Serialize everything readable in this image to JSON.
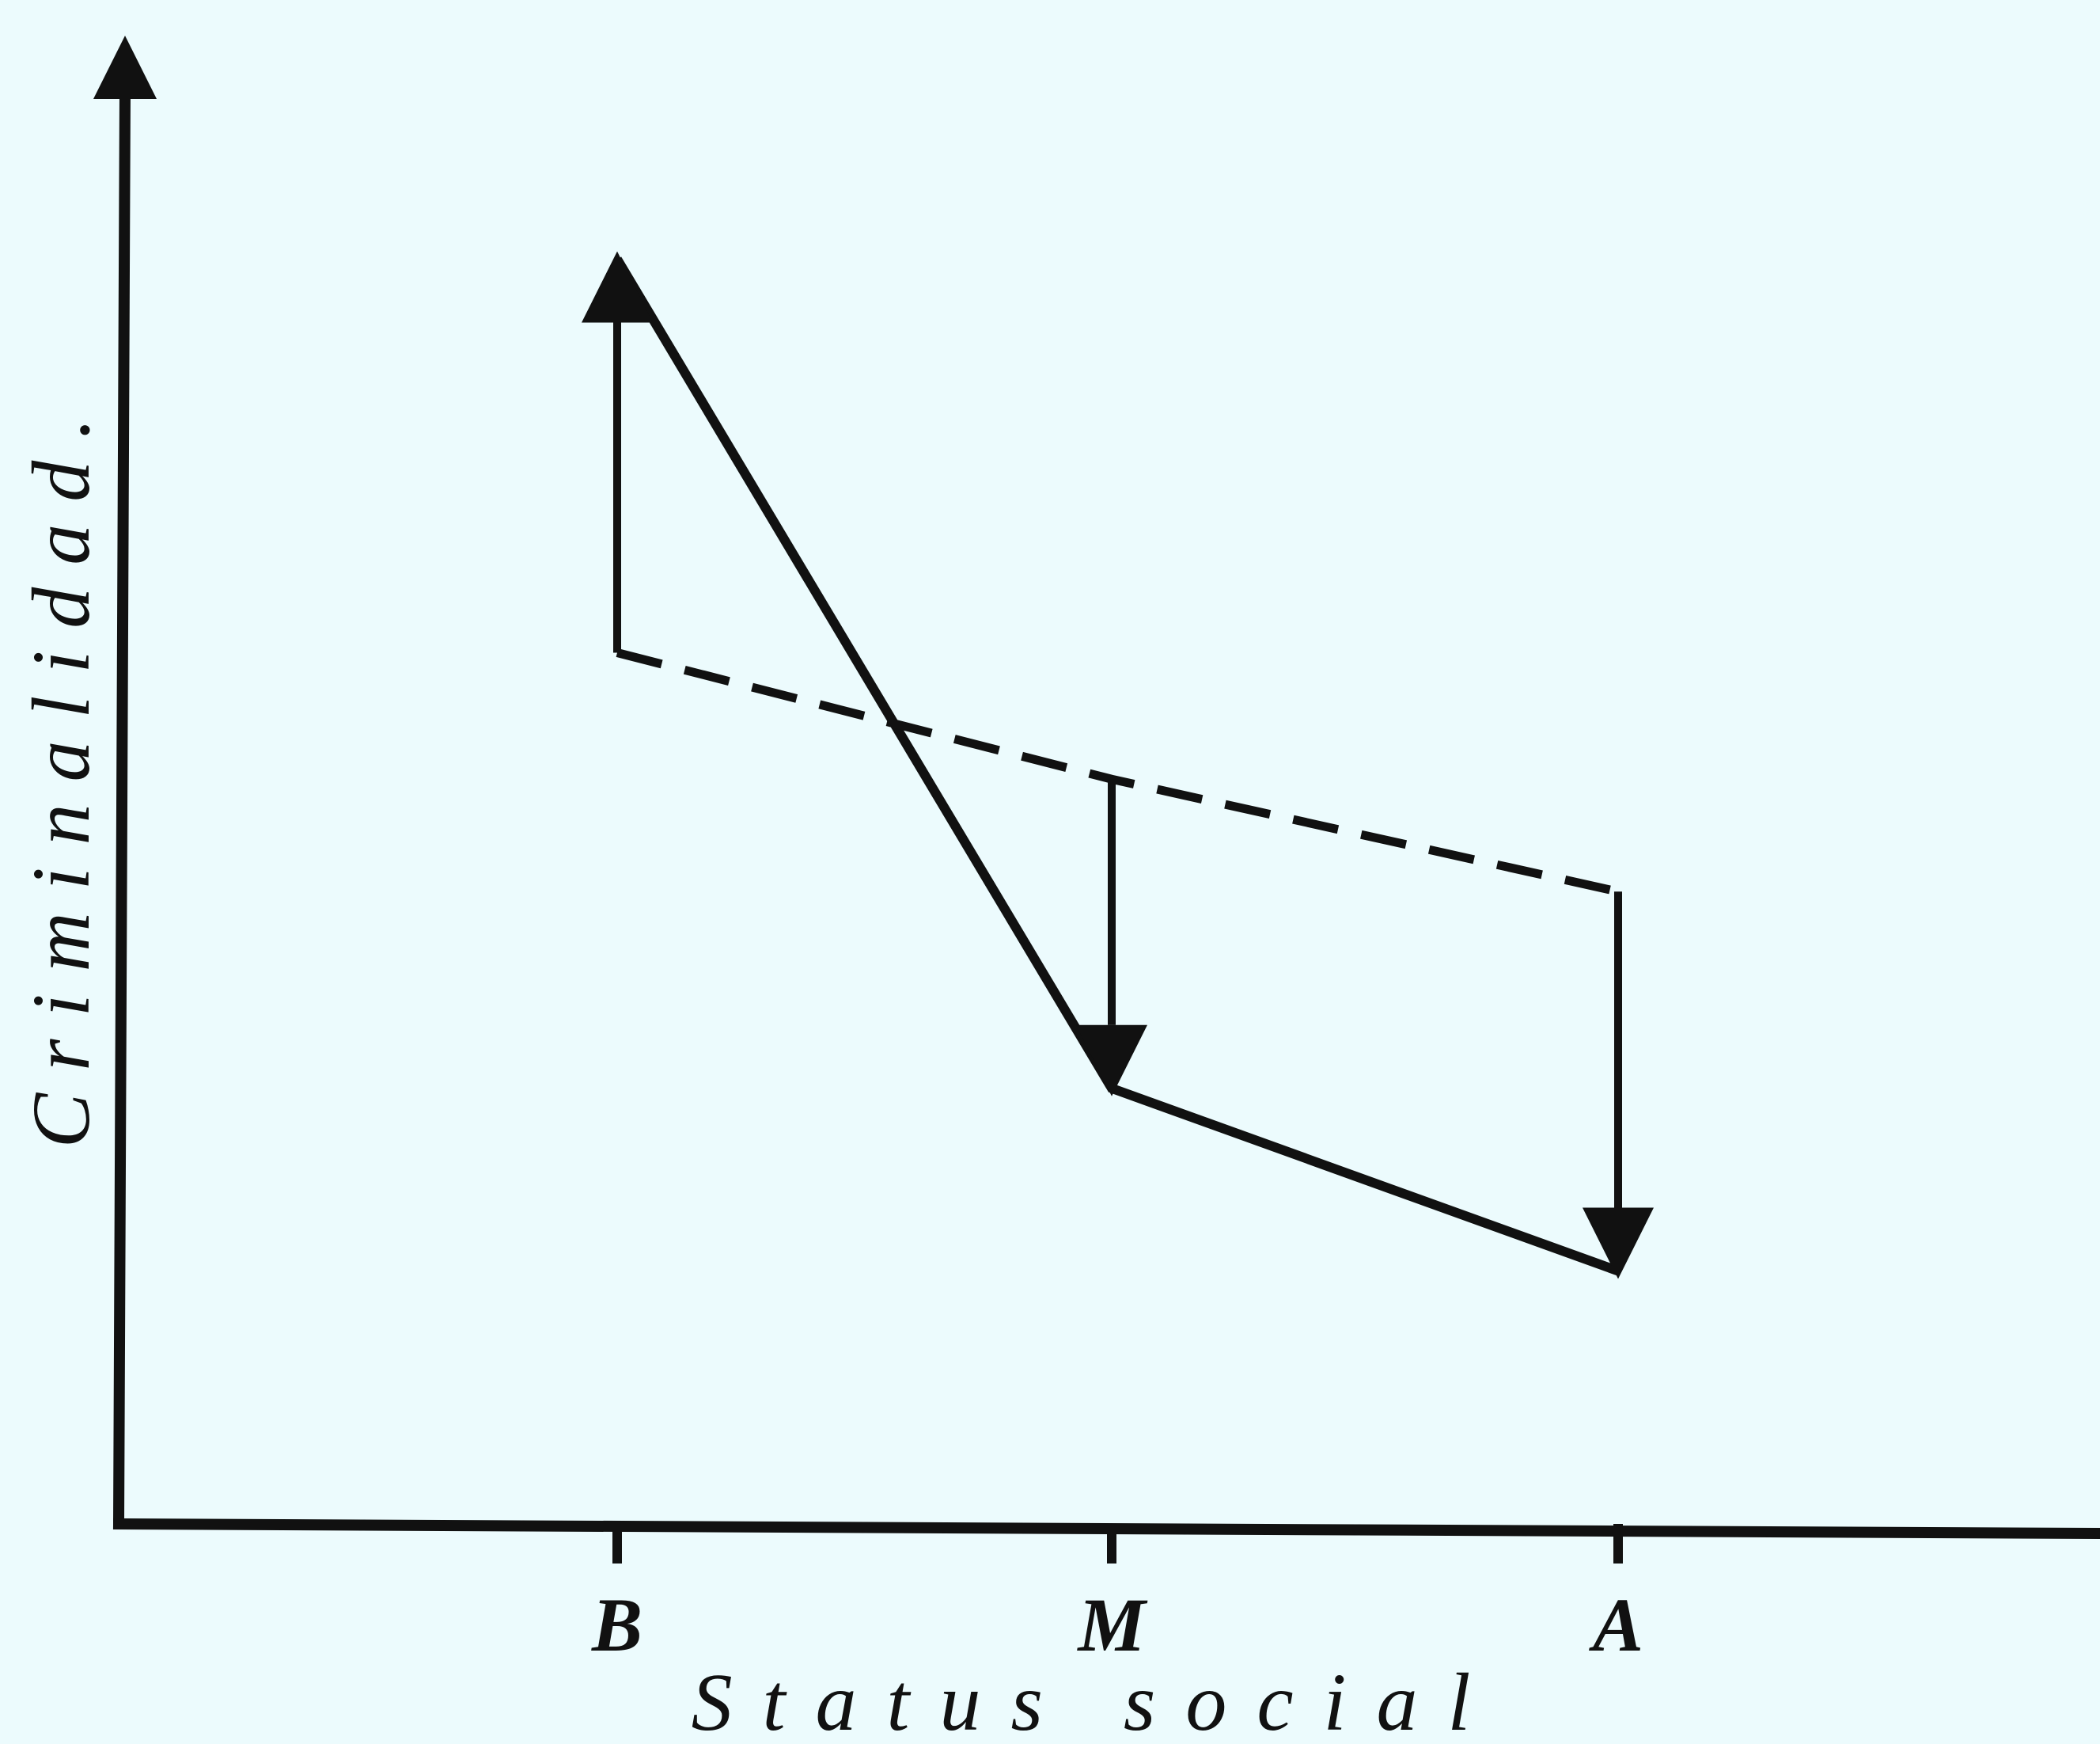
{
  "chart_data": {
    "type": "line",
    "title": "",
    "xlabel": "Status social",
    "ylabel": "Criminalidad.",
    "categories": [
      "B",
      "M",
      "A"
    ],
    "ylim": [
      0,
      100
    ],
    "grid": false,
    "legend": "none",
    "series": [
      {
        "values": [
          90,
          31,
          18
        ],
        "style": "solid"
      },
      {
        "values": [
          62,
          53,
          45
        ],
        "style": "dashed"
      }
    ],
    "arrows": [
      {
        "category": "B",
        "from": 62,
        "to": 90,
        "direction": "up"
      },
      {
        "category": "M",
        "from": 53,
        "to": 31,
        "direction": "down"
      },
      {
        "category": "A",
        "from": 45,
        "to": 18,
        "direction": "down"
      }
    ],
    "colors": {
      "background": "#ecfbfd",
      "ink": "#111111"
    }
  }
}
